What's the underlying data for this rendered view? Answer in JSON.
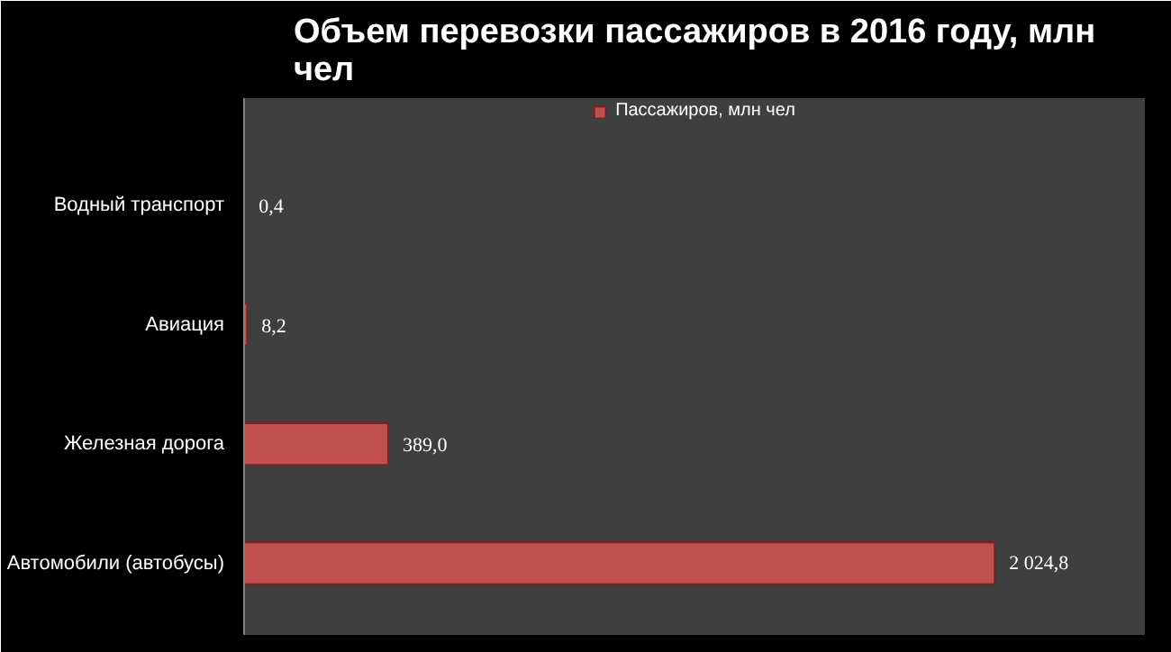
{
  "chart_data": {
    "type": "bar",
    "orientation": "horizontal",
    "title": "Объем перевозки пассажиров в 2016 году, млн чел",
    "categories": [
      "Водный транспорт",
      "Авиация",
      "Железная дорога",
      "Автомобили (автобусы)"
    ],
    "series": [
      {
        "name": "Пассажиров, млн чел",
        "color": "#c0504d",
        "values": [
          0.4,
          8.2,
          389.0,
          2024.8
        ],
        "value_labels": [
          "0,4",
          "8,2",
          "389,0",
          "2 024,8"
        ]
      }
    ],
    "data_labels": true,
    "legend": "top",
    "grid": false
  }
}
